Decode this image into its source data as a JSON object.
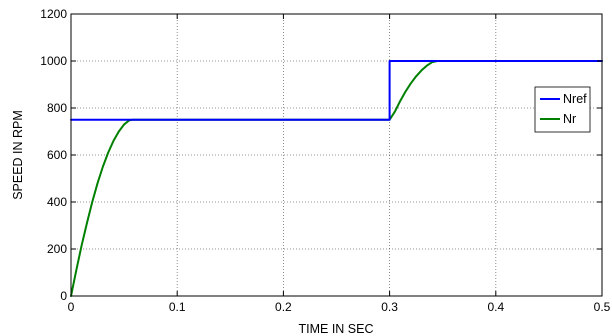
{
  "chart_data": {
    "type": "line",
    "title": "",
    "xlabel": "TIME IN SEC",
    "ylabel": "SPEED IN RPM",
    "xlim": [
      0,
      0.5
    ],
    "ylim": [
      0,
      1200
    ],
    "xticks": [
      0,
      0.1,
      0.2,
      0.3,
      0.4,
      0.5
    ],
    "yticks": [
      0,
      200,
      400,
      600,
      800,
      1000,
      1200
    ],
    "xtick_labels": [
      "0",
      "0.1",
      "0.2",
      "0.3",
      "0.4",
      "0.5"
    ],
    "ytick_labels": [
      "0",
      "200",
      "400",
      "600",
      "800",
      "1000",
      "1200"
    ],
    "grid": true,
    "legend_position": "right",
    "series": [
      {
        "name": "Nref",
        "color": "#0000ff",
        "x": [
          0,
          0.3,
          0.3,
          0.5
        ],
        "y": [
          750,
          750,
          1000,
          1000
        ]
      },
      {
        "name": "Nr",
        "color": "#008000",
        "x": [
          0,
          0.005,
          0.01,
          0.015,
          0.02,
          0.025,
          0.03,
          0.035,
          0.04,
          0.045,
          0.05,
          0.055,
          0.058,
          0.1,
          0.2,
          0.3,
          0.305,
          0.31,
          0.315,
          0.32,
          0.325,
          0.33,
          0.335,
          0.34,
          0.345,
          0.4,
          0.5
        ],
        "y": [
          0,
          110,
          215,
          310,
          400,
          480,
          550,
          610,
          660,
          700,
          730,
          748,
          750,
          750,
          750,
          750,
          785,
          830,
          870,
          905,
          935,
          960,
          980,
          995,
          1000,
          1000,
          1000
        ]
      }
    ]
  }
}
